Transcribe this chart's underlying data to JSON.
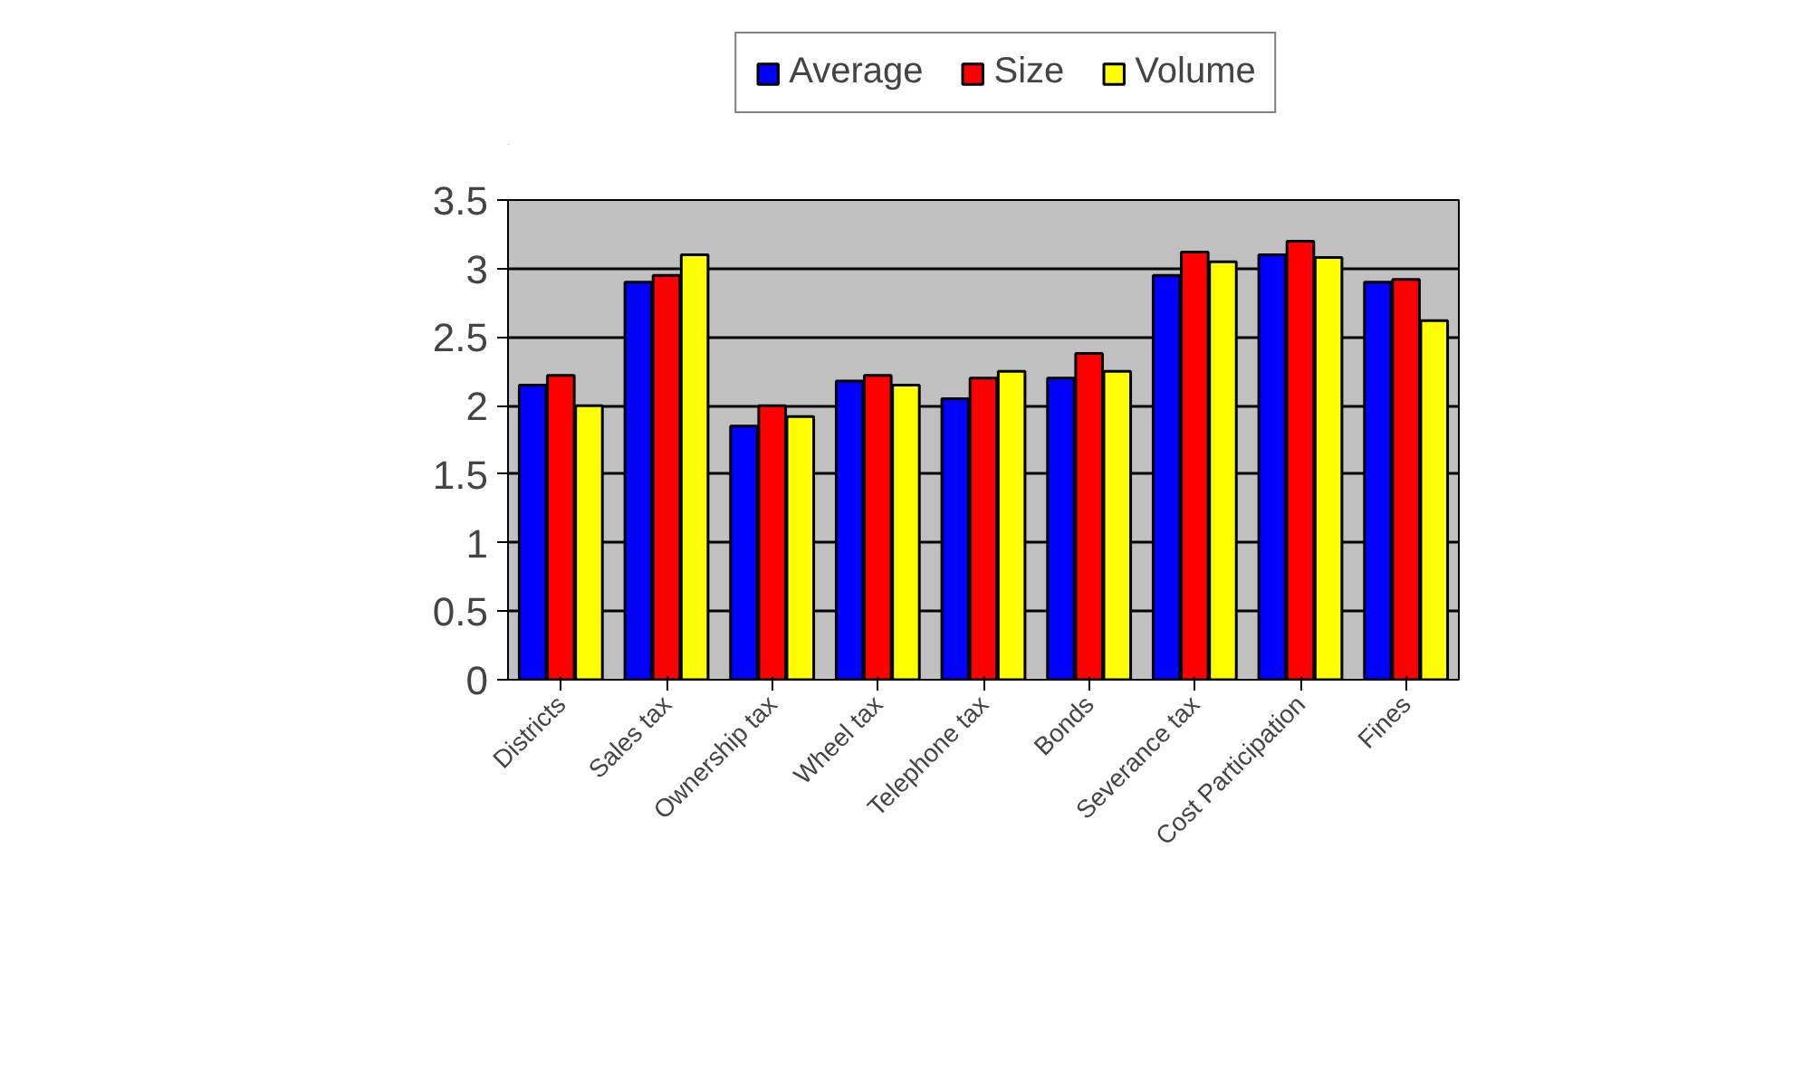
{
  "chart_data": {
    "type": "bar",
    "categories": [
      "Districts",
      "Sales tax",
      "Ownership tax",
      "Wheel tax",
      "Telephone tax",
      "Bonds",
      "Severance tax",
      "Cost Participation",
      "Fines"
    ],
    "series": [
      {
        "name": "Average",
        "color": "#0000ff",
        "values": [
          2.15,
          2.9,
          1.85,
          2.18,
          2.05,
          2.2,
          2.95,
          3.1,
          2.9
        ]
      },
      {
        "name": "Size",
        "color": "#ff0000",
        "values": [
          2.22,
          2.95,
          2.0,
          2.22,
          2.2,
          2.38,
          3.12,
          3.2,
          2.92
        ]
      },
      {
        "name": "Volume",
        "color": "#ffff00",
        "values": [
          2.0,
          3.1,
          1.92,
          2.15,
          2.25,
          2.25,
          3.05,
          3.08,
          2.62
        ]
      }
    ],
    "ylim": [
      0,
      3.5
    ],
    "yticks": [
      0,
      0.5,
      1,
      1.5,
      2,
      2.5,
      3,
      3.5
    ],
    "grid": "y",
    "legend": "top"
  }
}
